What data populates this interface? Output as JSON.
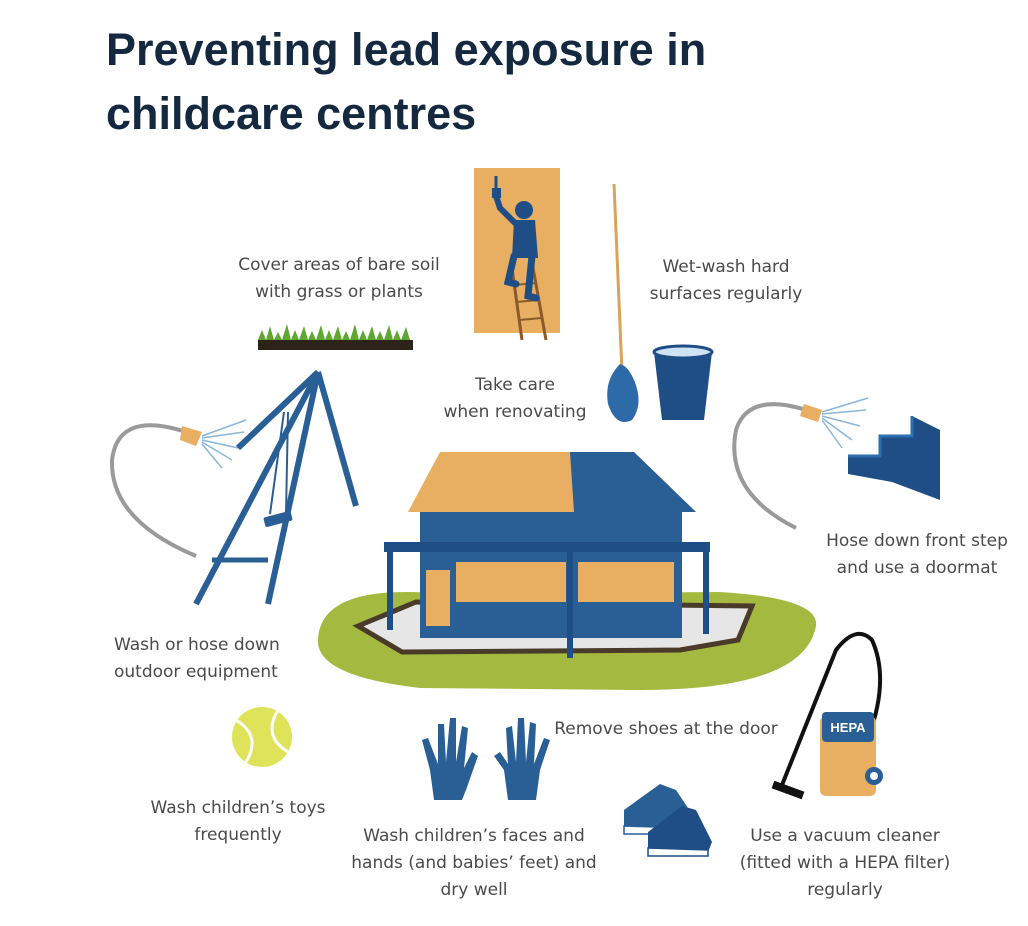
{
  "title": "Preventing lead exposure in childcare centres",
  "labels": {
    "cover_soil": "Cover areas of bare soil\nwith grass or plants",
    "wet_wash": "Wet-wash hard\nsurfaces regularly",
    "renovating": "Take care\nwhen renovating",
    "hose_steps": "Hose down front step\nand use a doormat",
    "wash_equipment": "Wash or hose down\noutdoor equipment",
    "remove_shoes": "Remove shoes at the door",
    "wash_toys": "Wash children’s toys\nfrequently",
    "wash_hands": "Wash children’s faces and\nhands (and babies’ feet) and\ndry well",
    "vacuum": "Use a vacuum cleaner\n(fitted with a HEPA filter)\nregularly"
  },
  "vacuum_badge": "HEPA",
  "colors": {
    "navy": "#1f4e87",
    "tan": "#e8ae62",
    "grass": "#a4b93f",
    "title": "#14283f",
    "text": "#4a4a4a"
  }
}
